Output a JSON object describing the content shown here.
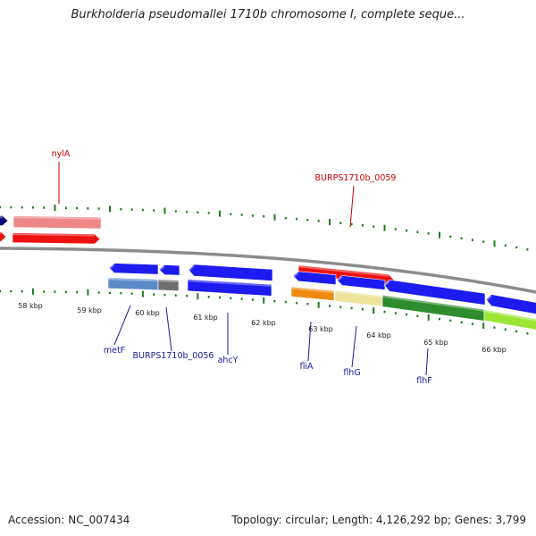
{
  "header": {
    "title": "Burkholderia pseudomallei 1710b chromosome I, complete seque..."
  },
  "footer": {
    "accession": "Accession: NC_007434",
    "summary": "Topology: circular; Length: 4,126,292 bp; Genes: 3,799"
  },
  "scale": {
    "unit": "kbp",
    "ticks": [
      "58 kbp",
      "59 kbp",
      "60 kbp",
      "61 kbp",
      "62 kbp",
      "63 kbp",
      "64 kbp",
      "65 kbp",
      "66 kbp"
    ]
  },
  "colors": {
    "backbone": "#8c8c8c",
    "tick": "#1e7a1e",
    "forward_label": "#cc0000",
    "reverse_label": "#1a1aa0",
    "blue": "#1c1cf0",
    "red": "#ee1111",
    "pink": "#ee8888",
    "navy": "#0a0a78",
    "steel": "#5a8ac8",
    "gray": "#6e6e6e",
    "orange": "#ef8a10",
    "khaki": "#ece49a",
    "green": "#2e8c2e",
    "lime": "#9ae632"
  },
  "gene_labels": [
    {
      "text": "nylA",
      "strand": "forward"
    },
    {
      "text": "BURPS1710b_0059",
      "strand": "forward"
    },
    {
      "text": "metF",
      "strand": "reverse"
    },
    {
      "text": "BURPS1710b_0056",
      "strand": "reverse"
    },
    {
      "text": "ahcY",
      "strand": "reverse"
    },
    {
      "text": "fliA",
      "strand": "reverse"
    },
    {
      "text": "flhG",
      "strand": "reverse"
    },
    {
      "text": "flhF",
      "strand": "reverse"
    }
  ]
}
